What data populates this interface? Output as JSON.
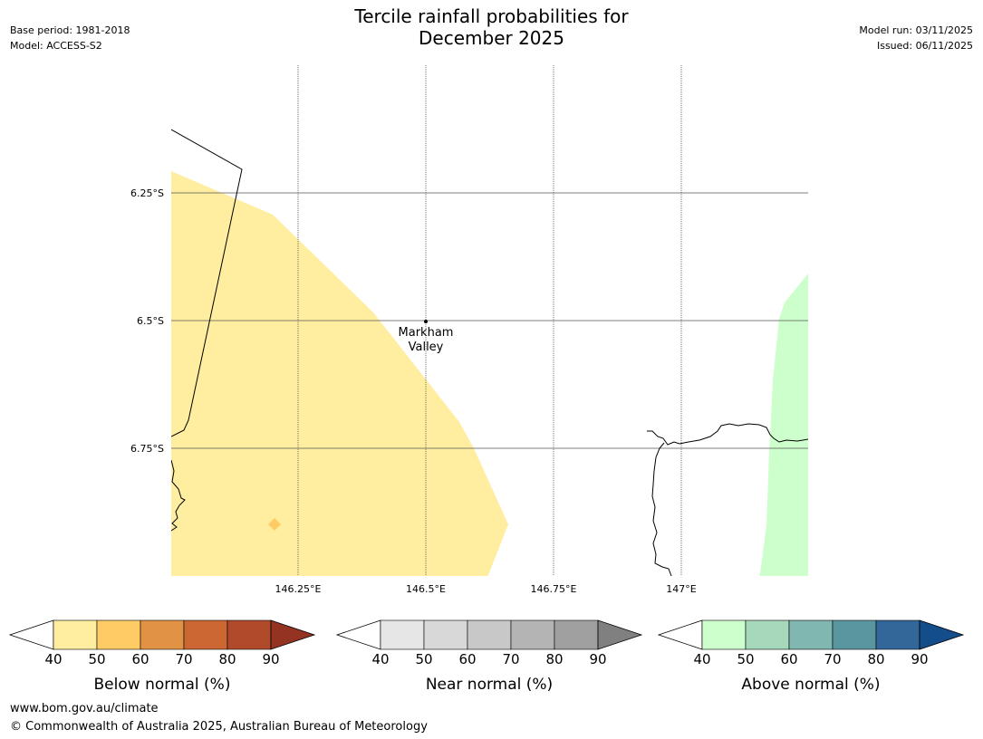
{
  "header": {
    "title_line1": "Tercile rainfall probabilities for",
    "title_line2": "December 2025",
    "base_period": "Base period: 1981-2018",
    "model": "Model: ACCESS-S2",
    "model_run": "Model run: 03/11/2025",
    "issued": "Issued: 06/11/2025"
  },
  "map": {
    "lat_labels": [
      "6.25°S",
      "6.5°S",
      "6.75°S"
    ],
    "lon_labels": [
      "146.25°E",
      "146.5°E",
      "146.75°E",
      "147°E"
    ],
    "place": {
      "name_line1": "Markham",
      "name_line2": "Valley"
    },
    "colors": {
      "below_40_50": "#ffeda0",
      "below_50_60": "#fecb65",
      "above_40_50": "#ccffcc"
    }
  },
  "legends": [
    {
      "label": "Below normal (%)",
      "ticks": [
        "40",
        "50",
        "60",
        "70",
        "80",
        "90"
      ],
      "colors": [
        "#ffeda0",
        "#fecb65",
        "#e19245",
        "#cc6633",
        "#b04a2a",
        "#943322"
      ]
    },
    {
      "label": "Near normal (%)",
      "ticks": [
        "40",
        "50",
        "60",
        "70",
        "80",
        "90"
      ],
      "colors": [
        "#e6e6e6",
        "#d8d8d8",
        "#c8c8c8",
        "#b4b4b4",
        "#a0a0a0",
        "#808080"
      ]
    },
    {
      "label": "Above normal (%)",
      "ticks": [
        "40",
        "50",
        "60",
        "70",
        "80",
        "90"
      ],
      "colors": [
        "#ccffcc",
        "#a6d8bc",
        "#80b7b0",
        "#5a96a0",
        "#336699",
        "#134d8a"
      ]
    }
  ],
  "footer": {
    "url": "www.bom.gov.au/climate",
    "copyright": "© Commonwealth of Australia 2025, Australian Bureau of Meteorology"
  }
}
